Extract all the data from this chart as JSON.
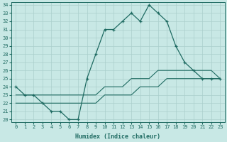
{
  "x_labels": [
    0,
    1,
    2,
    3,
    4,
    5,
    6,
    7,
    8,
    9,
    10,
    11,
    12,
    13,
    14,
    15,
    16,
    17,
    18,
    19,
    20,
    21,
    22,
    23
  ],
  "main_line": [
    24,
    23,
    23,
    22,
    21,
    21,
    20,
    20,
    25,
    28,
    31,
    31,
    32,
    33,
    32,
    34,
    33,
    32,
    29,
    27,
    26,
    25,
    25,
    25
  ],
  "upper_line": [
    23,
    23,
    23,
    23,
    23,
    23,
    23,
    23,
    23,
    23,
    24,
    24,
    24,
    25,
    25,
    25,
    26,
    26,
    26,
    26,
    26,
    26,
    26,
    25
  ],
  "lower_line": [
    22,
    22,
    22,
    22,
    22,
    22,
    22,
    22,
    22,
    22,
    23,
    23,
    23,
    23,
    24,
    24,
    24,
    25,
    25,
    25,
    25,
    25,
    25,
    25
  ],
  "ylim_min": 20,
  "ylim_max": 34,
  "yticks": [
    20,
    21,
    22,
    23,
    24,
    25,
    26,
    27,
    28,
    29,
    30,
    31,
    32,
    33,
    34
  ],
  "xlabel": "Humidex (Indice chaleur)",
  "bg_color": "#c8e8e5",
  "line_color": "#1f6b62",
  "grid_color": "#aacfcc"
}
